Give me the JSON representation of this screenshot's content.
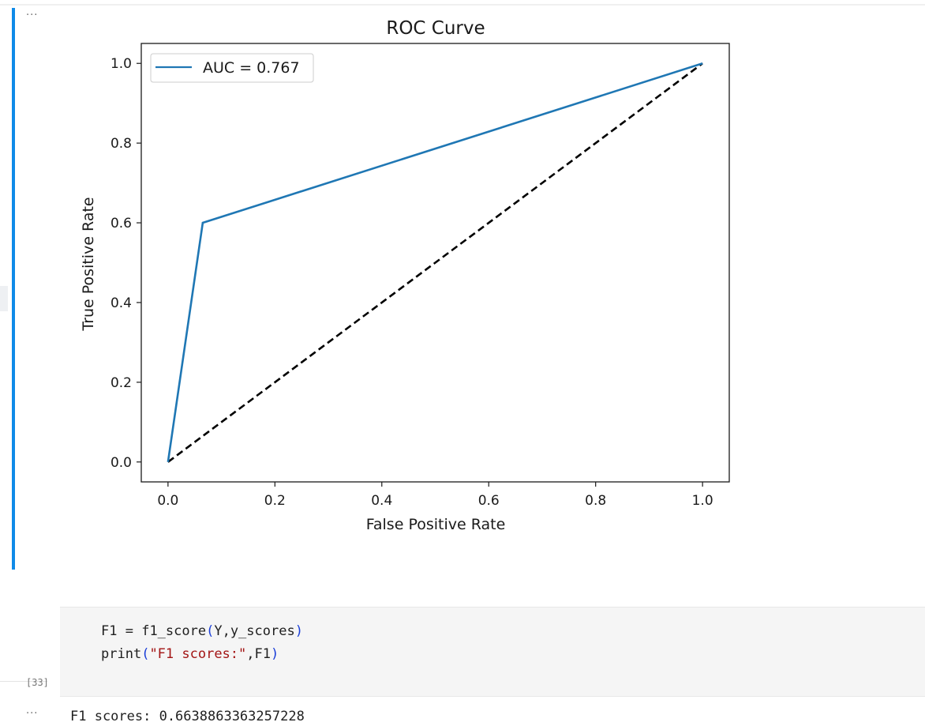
{
  "cell_output": {
    "more_icon": "ellipsis-icon",
    "chart_data": {
      "type": "line",
      "title": "ROC Curve",
      "xlabel": "False Positive Rate",
      "ylabel": "True Positive Rate",
      "xlim": [
        -0.05,
        1.05
      ],
      "ylim": [
        -0.05,
        1.05
      ],
      "xticks": [
        "0.0",
        "0.2",
        "0.4",
        "0.6",
        "0.8",
        "1.0"
      ],
      "yticks": [
        "0.0",
        "0.2",
        "0.4",
        "0.6",
        "0.8",
        "1.0"
      ],
      "grid": false,
      "legend_position": "top-left",
      "series": [
        {
          "name": "AUC = 0.767",
          "color": "#1f77b4",
          "style": "solid",
          "points": [
            [
              0.0,
              0.0
            ],
            [
              0.065,
              0.6
            ],
            [
              1.0,
              1.0
            ]
          ]
        },
        {
          "color": "#000000",
          "style": "dashed",
          "points": [
            [
              0.0,
              0.0
            ],
            [
              1.0,
              1.0
            ]
          ]
        }
      ]
    }
  },
  "code_cell": {
    "execution_count": "[33]",
    "line1": {
      "var": "F1",
      "op": " = ",
      "func": "f1_score",
      "open": "(",
      "args": "Y,y_scores",
      "close": ")"
    },
    "line2": {
      "func": "print",
      "open": "(",
      "str": "\"F1 scores:\"",
      "args": ",F1",
      "close": ")"
    }
  },
  "output": {
    "more_icon": "ellipsis-icon",
    "text": "F1 scores: 0.6638863363257228"
  }
}
